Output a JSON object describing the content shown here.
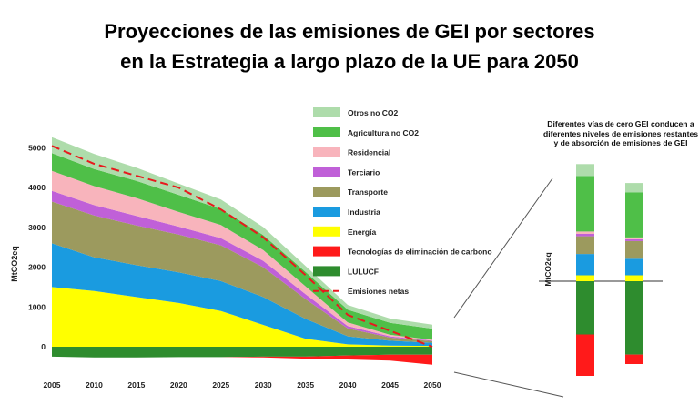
{
  "title_line1": "Proyecciones de las emisiones de GEI por sectores",
  "title_line2": "en la Estrategia a largo plazo de la UE para 2050",
  "side_title": "Diferentes vías de cero GEI conducen a diferentes niveles de emisiones restantes y de absorción de emisiones de GEI",
  "chart_data": [
    {
      "type": "area",
      "stacked": true,
      "x": [
        2005,
        2010,
        2015,
        2020,
        2025,
        2030,
        2035,
        2040,
        2045,
        2050
      ],
      "xticks": [
        "2005",
        "2010",
        "2015",
        "2020",
        "2025",
        "2030",
        "2035",
        "2040",
        "2045",
        "2050"
      ],
      "ylabel": "MtCO2eq",
      "yticks": [
        "0",
        "1000",
        "2000",
        "3000",
        "4000",
        "5000"
      ],
      "ylim": [
        -700,
        5600
      ],
      "legend_position": "right",
      "positive_series": [
        {
          "name": "Energía",
          "color": "#ffff00",
          "values": [
            1500,
            1400,
            1250,
            1100,
            900,
            550,
            200,
            60,
            30,
            20
          ]
        },
        {
          "name": "Industria",
          "color": "#1a9be0",
          "values": [
            1100,
            850,
            800,
            770,
            750,
            700,
            500,
            200,
            120,
            80
          ]
        },
        {
          "name": "Transporte",
          "color": "#9c9a5e",
          "values": [
            1050,
            1050,
            1000,
            950,
            900,
            750,
            500,
            200,
            80,
            40
          ]
        },
        {
          "name": "Terciario",
          "color": "#c060d8",
          "values": [
            270,
            260,
            240,
            200,
            180,
            160,
            120,
            60,
            30,
            15
          ]
        },
        {
          "name": "Residencial",
          "color": "#f8b4bc",
          "values": [
            500,
            480,
            450,
            370,
            330,
            270,
            200,
            90,
            40,
            20
          ]
        },
        {
          "name": "Agricultura no CO2",
          "color": "#4fbf48",
          "values": [
            450,
            430,
            430,
            430,
            400,
            380,
            360,
            320,
            300,
            280
          ]
        },
        {
          "name": "Otros no CO2",
          "color": "#aedcab",
          "values": [
            400,
            380,
            330,
            280,
            240,
            200,
            150,
            120,
            110,
            100
          ]
        }
      ],
      "negative_series": [
        {
          "name": "LULUCF",
          "color": "#2e8c2e",
          "values": [
            -250,
            -270,
            -270,
            -260,
            -260,
            -250,
            -250,
            -220,
            -200,
            -200
          ]
        },
        {
          "name": "Tecnologías de eliminación de carbono",
          "color": "#ff1a1a",
          "values": [
            0,
            0,
            0,
            0,
            0,
            -20,
            -50,
            -100,
            -150,
            -250
          ]
        }
      ],
      "line_series": [
        {
          "name": "Emisiones netas",
          "color": "#e8191d",
          "style": "dashed",
          "values": [
            5050,
            4600,
            4300,
            4000,
            3450,
            2750,
            1800,
            800,
            400,
            0
          ]
        }
      ]
    },
    {
      "type": "bar",
      "stacked": true,
      "ylabel": "MtCO2eq",
      "bars": [
        {
          "segments": [
            {
              "name": "Energía",
              "color": "#ffff00",
              "value": 50
            },
            {
              "name": "Industria",
              "color": "#1a9be0",
              "value": 180
            },
            {
              "name": "Transporte",
              "color": "#9c9a5e",
              "value": 150
            },
            {
              "name": "Terciario",
              "color": "#c060d8",
              "value": 20
            },
            {
              "name": "Residencial",
              "color": "#f8b4bc",
              "value": 20
            },
            {
              "name": "Agricultura no CO2",
              "color": "#4fbf48",
              "value": 470
            },
            {
              "name": "Otros no CO2",
              "color": "#aedcab",
              "value": 100
            },
            {
              "name": "LULUCF",
              "color": "#2e8c2e",
              "value": -450
            },
            {
              "name": "Tecnologías de eliminación de carbono",
              "color": "#ff1a1a",
              "value": -350
            }
          ]
        },
        {
          "segments": [
            {
              "name": "Energía",
              "color": "#ffff00",
              "value": 50
            },
            {
              "name": "Industria",
              "color": "#1a9be0",
              "value": 140
            },
            {
              "name": "Transporte",
              "color": "#9c9a5e",
              "value": 150
            },
            {
              "name": "Terciario",
              "color": "#c060d8",
              "value": 15
            },
            {
              "name": "Residencial",
              "color": "#f8b4bc",
              "value": 15
            },
            {
              "name": "Agricultura no CO2",
              "color": "#4fbf48",
              "value": 380
            },
            {
              "name": "Otros no CO2",
              "color": "#aedcab",
              "value": 80
            },
            {
              "name": "LULUCF",
              "color": "#2e8c2e",
              "value": -620
            },
            {
              "name": "Tecnologías de eliminación de carbono",
              "color": "#ff1a1a",
              "value": -80
            }
          ]
        }
      ]
    }
  ]
}
